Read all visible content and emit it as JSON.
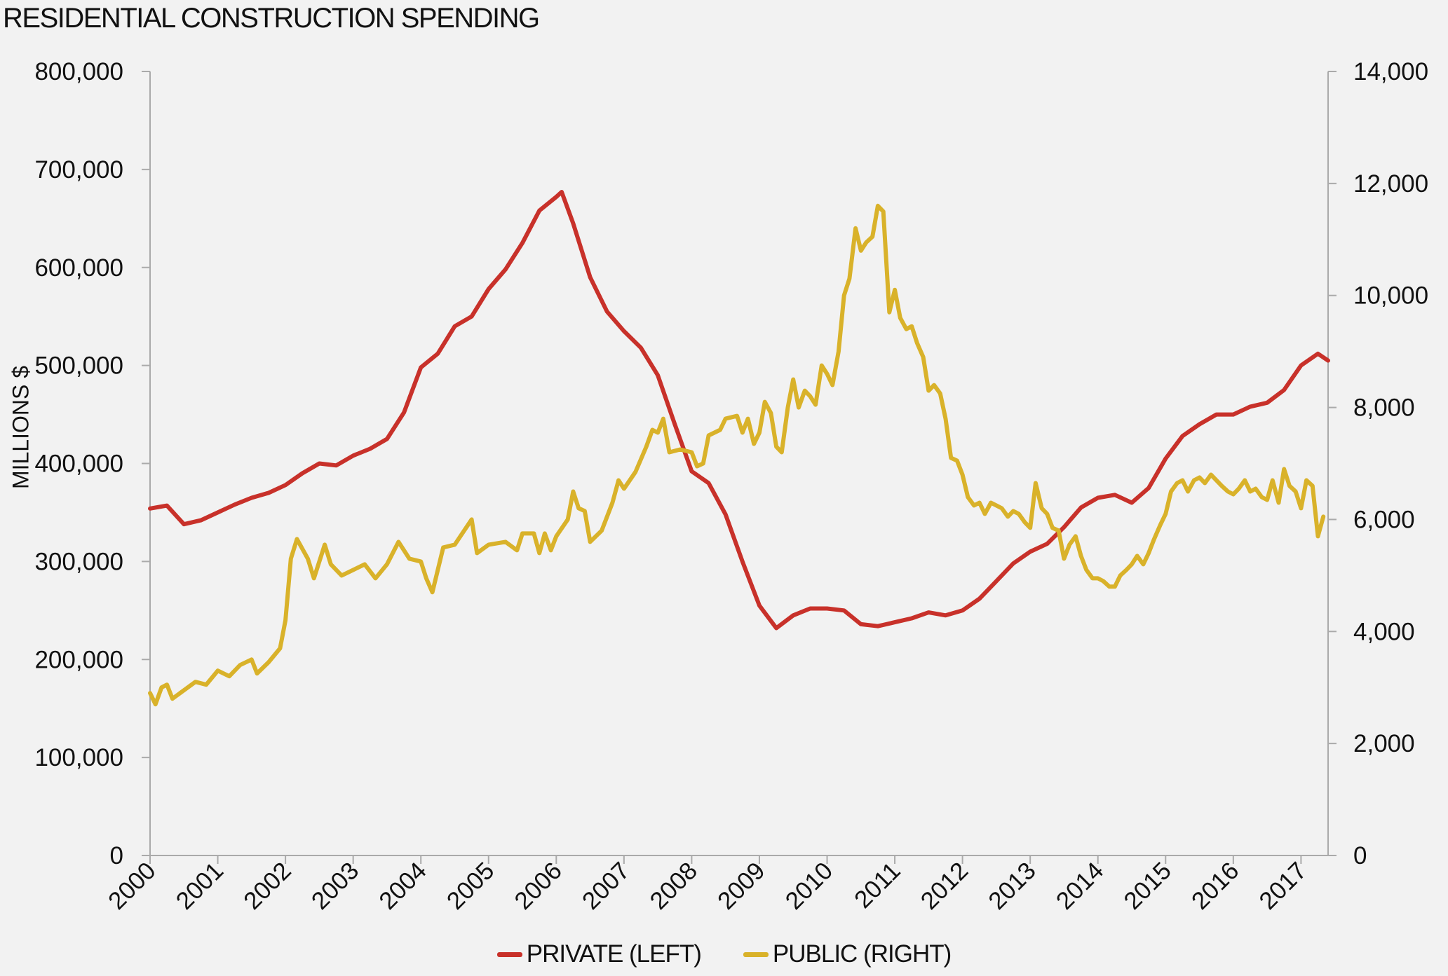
{
  "chart_data": {
    "type": "line",
    "title": "RESIDENTIAL CONSTRUCTION SPENDING",
    "ylabel": "MILLIONS $",
    "x_ticks": [
      "2000",
      "2001",
      "2002",
      "2003",
      "2004",
      "2005",
      "2006",
      "2007",
      "2008",
      "2009",
      "2010",
      "2011",
      "2012",
      "2013",
      "2014",
      "2015",
      "2016",
      "2017"
    ],
    "y_left": {
      "range": [
        0,
        800000
      ],
      "ticks": [
        "0",
        "100,000",
        "200,000",
        "300,000",
        "400,000",
        "500,000",
        "600,000",
        "700,000",
        "800,000"
      ]
    },
    "y_right": {
      "range": [
        0,
        14000
      ],
      "ticks": [
        "0",
        "2,000",
        "4,000",
        "6,000",
        "8,000",
        "10,000",
        "12,000",
        "14,000"
      ]
    },
    "x_range": [
      2000,
      2017.4
    ],
    "grid": false,
    "legend_position": "bottom",
    "series": [
      {
        "name": "PRIVATE (LEFT)",
        "axis": "left",
        "color": "#c8312a",
        "points": [
          [
            2000.0,
            354000
          ],
          [
            2000.25,
            357000
          ],
          [
            2000.5,
            338000
          ],
          [
            2000.75,
            342000
          ],
          [
            2001.0,
            350000
          ],
          [
            2001.25,
            358000
          ],
          [
            2001.5,
            365000
          ],
          [
            2001.75,
            370000
          ],
          [
            2002.0,
            378000
          ],
          [
            2002.25,
            390000
          ],
          [
            2002.5,
            400000
          ],
          [
            2002.75,
            398000
          ],
          [
            2003.0,
            408000
          ],
          [
            2003.25,
            415000
          ],
          [
            2003.5,
            425000
          ],
          [
            2003.75,
            452000
          ],
          [
            2004.0,
            498000
          ],
          [
            2004.25,
            512000
          ],
          [
            2004.5,
            540000
          ],
          [
            2004.75,
            550000
          ],
          [
            2005.0,
            578000
          ],
          [
            2005.25,
            598000
          ],
          [
            2005.5,
            625000
          ],
          [
            2005.75,
            658000
          ],
          [
            2006.0,
            672000
          ],
          [
            2006.08,
            677000
          ],
          [
            2006.25,
            645000
          ],
          [
            2006.5,
            590000
          ],
          [
            2006.75,
            555000
          ],
          [
            2007.0,
            535000
          ],
          [
            2007.25,
            518000
          ],
          [
            2007.5,
            490000
          ],
          [
            2007.75,
            440000
          ],
          [
            2008.0,
            392000
          ],
          [
            2008.25,
            380000
          ],
          [
            2008.5,
            348000
          ],
          [
            2008.75,
            300000
          ],
          [
            2009.0,
            255000
          ],
          [
            2009.25,
            232000
          ],
          [
            2009.5,
            245000
          ],
          [
            2009.75,
            252000
          ],
          [
            2010.0,
            252000
          ],
          [
            2010.25,
            250000
          ],
          [
            2010.5,
            236000
          ],
          [
            2010.75,
            234000
          ],
          [
            2011.0,
            238000
          ],
          [
            2011.25,
            242000
          ],
          [
            2011.5,
            248000
          ],
          [
            2011.75,
            245000
          ],
          [
            2012.0,
            250000
          ],
          [
            2012.25,
            262000
          ],
          [
            2012.5,
            280000
          ],
          [
            2012.75,
            298000
          ],
          [
            2013.0,
            310000
          ],
          [
            2013.25,
            318000
          ],
          [
            2013.5,
            335000
          ],
          [
            2013.75,
            355000
          ],
          [
            2014.0,
            365000
          ],
          [
            2014.25,
            368000
          ],
          [
            2014.5,
            360000
          ],
          [
            2014.75,
            375000
          ],
          [
            2015.0,
            405000
          ],
          [
            2015.25,
            428000
          ],
          [
            2015.5,
            440000
          ],
          [
            2015.75,
            450000
          ],
          [
            2016.0,
            450000
          ],
          [
            2016.25,
            458000
          ],
          [
            2016.5,
            462000
          ],
          [
            2016.75,
            475000
          ],
          [
            2017.0,
            500000
          ],
          [
            2017.25,
            512000
          ],
          [
            2017.4,
            505000
          ]
        ]
      },
      {
        "name": "PUBLIC (RIGHT)",
        "axis": "right",
        "color": "#d9b22a",
        "points": [
          [
            2000.0,
            2900
          ],
          [
            2000.08,
            2700
          ],
          [
            2000.17,
            3000
          ],
          [
            2000.25,
            3050
          ],
          [
            2000.33,
            2800
          ],
          [
            2000.5,
            2950
          ],
          [
            2000.67,
            3100
          ],
          [
            2000.83,
            3050
          ],
          [
            2001.0,
            3300
          ],
          [
            2001.17,
            3200
          ],
          [
            2001.33,
            3400
          ],
          [
            2001.5,
            3500
          ],
          [
            2001.58,
            3250
          ],
          [
            2001.75,
            3450
          ],
          [
            2001.92,
            3700
          ],
          [
            2002.0,
            4200
          ],
          [
            2002.08,
            5300
          ],
          [
            2002.17,
            5650
          ],
          [
            2002.33,
            5300
          ],
          [
            2002.42,
            4950
          ],
          [
            2002.58,
            5550
          ],
          [
            2002.67,
            5200
          ],
          [
            2002.83,
            5000
          ],
          [
            2003.0,
            5100
          ],
          [
            2003.17,
            5200
          ],
          [
            2003.33,
            4950
          ],
          [
            2003.5,
            5200
          ],
          [
            2003.67,
            5600
          ],
          [
            2003.83,
            5300
          ],
          [
            2004.0,
            5250
          ],
          [
            2004.08,
            4950
          ],
          [
            2004.17,
            4700
          ],
          [
            2004.33,
            5500
          ],
          [
            2004.5,
            5550
          ],
          [
            2004.75,
            6000
          ],
          [
            2004.83,
            5400
          ],
          [
            2005.0,
            5550
          ],
          [
            2005.25,
            5600
          ],
          [
            2005.42,
            5450
          ],
          [
            2005.5,
            5750
          ],
          [
            2005.67,
            5750
          ],
          [
            2005.75,
            5400
          ],
          [
            2005.83,
            5750
          ],
          [
            2005.92,
            5450
          ],
          [
            2006.0,
            5700
          ],
          [
            2006.17,
            6000
          ],
          [
            2006.25,
            6500
          ],
          [
            2006.33,
            6200
          ],
          [
            2006.42,
            6150
          ],
          [
            2006.5,
            5600
          ],
          [
            2006.67,
            5800
          ],
          [
            2006.83,
            6300
          ],
          [
            2006.92,
            6700
          ],
          [
            2007.0,
            6550
          ],
          [
            2007.17,
            6850
          ],
          [
            2007.33,
            7300
          ],
          [
            2007.42,
            7600
          ],
          [
            2007.5,
            7550
          ],
          [
            2007.58,
            7800
          ],
          [
            2007.67,
            7200
          ],
          [
            2007.83,
            7250
          ],
          [
            2008.0,
            7200
          ],
          [
            2008.08,
            6950
          ],
          [
            2008.17,
            7000
          ],
          [
            2008.25,
            7500
          ],
          [
            2008.42,
            7600
          ],
          [
            2008.5,
            7800
          ],
          [
            2008.67,
            7850
          ],
          [
            2008.75,
            7550
          ],
          [
            2008.83,
            7800
          ],
          [
            2008.92,
            7350
          ],
          [
            2009.0,
            7550
          ],
          [
            2009.08,
            8100
          ],
          [
            2009.17,
            7900
          ],
          [
            2009.25,
            7300
          ],
          [
            2009.33,
            7200
          ],
          [
            2009.42,
            8000
          ],
          [
            2009.5,
            8500
          ],
          [
            2009.58,
            8000
          ],
          [
            2009.67,
            8300
          ],
          [
            2009.75,
            8200
          ],
          [
            2009.83,
            8050
          ],
          [
            2009.92,
            8750
          ],
          [
            2010.0,
            8600
          ],
          [
            2010.08,
            8400
          ],
          [
            2010.17,
            9000
          ],
          [
            2010.25,
            10000
          ],
          [
            2010.33,
            10300
          ],
          [
            2010.42,
            11200
          ],
          [
            2010.5,
            10800
          ],
          [
            2010.58,
            10950
          ],
          [
            2010.67,
            11050
          ],
          [
            2010.75,
            11600
          ],
          [
            2010.83,
            11500
          ],
          [
            2010.92,
            9700
          ],
          [
            2011.0,
            10100
          ],
          [
            2011.08,
            9600
          ],
          [
            2011.17,
            9400
          ],
          [
            2011.25,
            9450
          ],
          [
            2011.33,
            9150
          ],
          [
            2011.42,
            8900
          ],
          [
            2011.5,
            8300
          ],
          [
            2011.58,
            8400
          ],
          [
            2011.67,
            8250
          ],
          [
            2011.75,
            7800
          ],
          [
            2011.83,
            7100
          ],
          [
            2011.92,
            7050
          ],
          [
            2012.0,
            6800
          ],
          [
            2012.08,
            6400
          ],
          [
            2012.17,
            6250
          ],
          [
            2012.25,
            6300
          ],
          [
            2012.33,
            6100
          ],
          [
            2012.42,
            6300
          ],
          [
            2012.5,
            6250
          ],
          [
            2012.58,
            6200
          ],
          [
            2012.67,
            6050
          ],
          [
            2012.75,
            6150
          ],
          [
            2012.83,
            6100
          ],
          [
            2012.92,
            5950
          ],
          [
            2013.0,
            5850
          ],
          [
            2013.08,
            6650
          ],
          [
            2013.17,
            6200
          ],
          [
            2013.25,
            6100
          ],
          [
            2013.33,
            5850
          ],
          [
            2013.42,
            5800
          ],
          [
            2013.5,
            5300
          ],
          [
            2013.58,
            5550
          ],
          [
            2013.67,
            5700
          ],
          [
            2013.75,
            5350
          ],
          [
            2013.83,
            5100
          ],
          [
            2013.92,
            4950
          ],
          [
            2014.0,
            4950
          ],
          [
            2014.08,
            4900
          ],
          [
            2014.17,
            4800
          ],
          [
            2014.25,
            4800
          ],
          [
            2014.33,
            5000
          ],
          [
            2014.42,
            5100
          ],
          [
            2014.5,
            5200
          ],
          [
            2014.58,
            5350
          ],
          [
            2014.67,
            5200
          ],
          [
            2014.75,
            5400
          ],
          [
            2014.83,
            5650
          ],
          [
            2014.92,
            5900
          ],
          [
            2015.0,
            6100
          ],
          [
            2015.08,
            6500
          ],
          [
            2015.17,
            6650
          ],
          [
            2015.25,
            6700
          ],
          [
            2015.33,
            6500
          ],
          [
            2015.42,
            6700
          ],
          [
            2015.5,
            6750
          ],
          [
            2015.58,
            6650
          ],
          [
            2015.67,
            6800
          ],
          [
            2015.75,
            6700
          ],
          [
            2015.83,
            6600
          ],
          [
            2015.92,
            6500
          ],
          [
            2016.0,
            6450
          ],
          [
            2016.08,
            6550
          ],
          [
            2016.17,
            6700
          ],
          [
            2016.25,
            6500
          ],
          [
            2016.33,
            6550
          ],
          [
            2016.42,
            6400
          ],
          [
            2016.5,
            6350
          ],
          [
            2016.58,
            6700
          ],
          [
            2016.67,
            6300
          ],
          [
            2016.75,
            6900
          ],
          [
            2016.83,
            6600
          ],
          [
            2016.92,
            6500
          ],
          [
            2017.0,
            6200
          ],
          [
            2017.08,
            6700
          ],
          [
            2017.17,
            6600
          ],
          [
            2017.25,
            5700
          ],
          [
            2017.33,
            6050
          ]
        ]
      }
    ]
  }
}
